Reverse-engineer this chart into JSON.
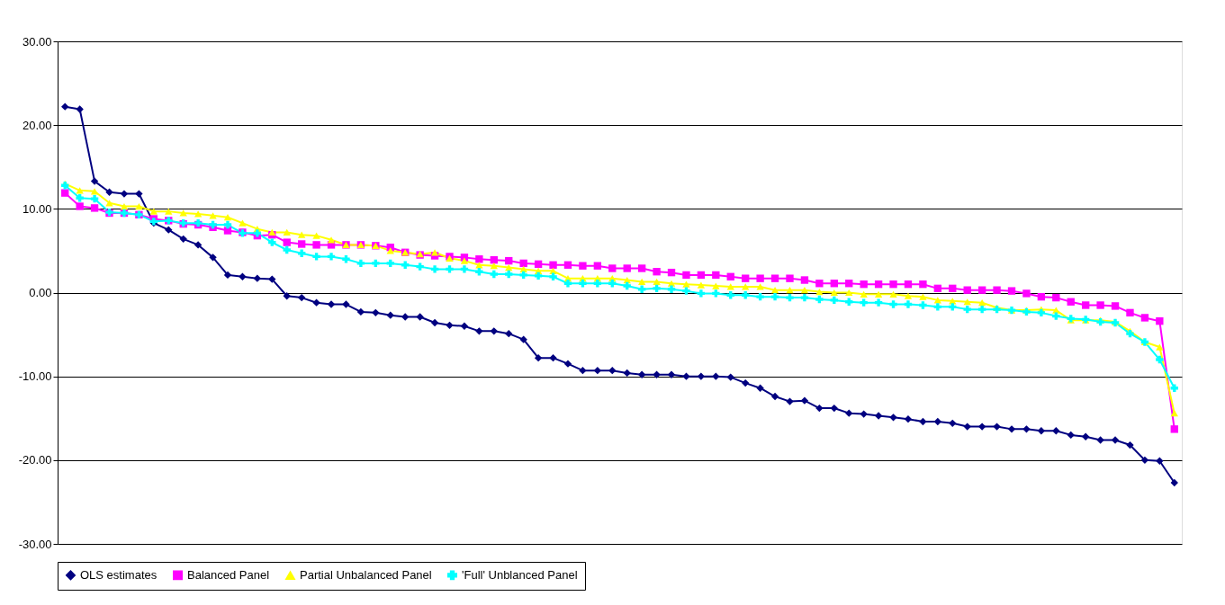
{
  "chart_data": {
    "type": "line",
    "categories": [
      null,
      null,
      null,
      null,
      null,
      null,
      null,
      null,
      null,
      null,
      null,
      null,
      null,
      null,
      null,
      null,
      null,
      null,
      null,
      null,
      null,
      null,
      null,
      null,
      null,
      null,
      null,
      null,
      null,
      null,
      null,
      null,
      null,
      null,
      null,
      null,
      null,
      null,
      null,
      null,
      null,
      null,
      null,
      null,
      null,
      null,
      null,
      null,
      null,
      null,
      null,
      null,
      null,
      null,
      null,
      null,
      null,
      null,
      null,
      null,
      null,
      null,
      null,
      null,
      null,
      null,
      null,
      null,
      null,
      null,
      null,
      null,
      null,
      null,
      null,
      null
    ],
    "series": [
      {
        "name": "OLS estimates",
        "color": "#000080",
        "marker": "diamond",
        "values": [
          22.2,
          21.9,
          13.3,
          12.0,
          11.8,
          11.8,
          8.3,
          7.5,
          6.4,
          5.7,
          4.2,
          2.1,
          1.9,
          1.7,
          1.6,
          -0.4,
          -0.6,
          -1.2,
          -1.4,
          -1.4,
          -2.3,
          -2.4,
          -2.7,
          -2.9,
          -2.9,
          -3.6,
          -3.9,
          -4.0,
          -4.6,
          -4.6,
          -4.9,
          -5.6,
          -7.8,
          -7.8,
          -8.5,
          -9.3,
          -9.3,
          -9.3,
          -9.6,
          -9.8,
          -9.8,
          -9.8,
          -10.0,
          -10.0,
          -10.0,
          -10.1,
          -10.8,
          -11.4,
          -12.4,
          -13.0,
          -12.9,
          -13.8,
          -13.8,
          -14.4,
          -14.5,
          -14.7,
          -14.9,
          -15.1,
          -15.4,
          -15.4,
          -15.6,
          -16.0,
          -16.0,
          -16.0,
          -16.3,
          -16.3,
          -16.5,
          -16.5,
          -17.0,
          -17.2,
          -17.6,
          -17.6,
          -18.2,
          -20.0,
          -20.1,
          -22.7
        ]
      },
      {
        "name": "Balanced Panel",
        "color": "#ff00ff",
        "marker": "square",
        "values": [
          11.9,
          10.3,
          10.1,
          9.5,
          9.5,
          9.3,
          8.8,
          8.6,
          8.2,
          8.1,
          7.8,
          7.4,
          7.2,
          6.8,
          6.9,
          6.0,
          5.8,
          5.7,
          5.7,
          5.7,
          5.7,
          5.6,
          5.4,
          4.8,
          4.5,
          4.4,
          4.3,
          4.2,
          4.0,
          3.9,
          3.8,
          3.5,
          3.4,
          3.3,
          3.3,
          3.2,
          3.2,
          2.9,
          2.9,
          2.9,
          2.5,
          2.4,
          2.1,
          2.1,
          2.1,
          1.9,
          1.7,
          1.7,
          1.7,
          1.7,
          1.5,
          1.1,
          1.1,
          1.1,
          1.0,
          1.0,
          1.0,
          1.0,
          1.0,
          0.5,
          0.5,
          0.3,
          0.3,
          0.3,
          0.2,
          -0.1,
          -0.5,
          -0.6,
          -1.1,
          -1.5,
          -1.5,
          -1.6,
          -2.4,
          -3.0,
          -3.4,
          -16.3
        ]
      },
      {
        "name": "Partial Unbalanced Panel",
        "color": "#ffff00",
        "marker": "triangle",
        "values": [
          13.0,
          12.2,
          12.1,
          10.7,
          10.3,
          10.3,
          9.7,
          9.7,
          9.5,
          9.4,
          9.2,
          9.0,
          8.3,
          7.6,
          7.2,
          7.2,
          6.9,
          6.8,
          6.3,
          5.7,
          5.7,
          5.6,
          5.0,
          4.8,
          4.6,
          4.8,
          4.1,
          3.8,
          3.3,
          3.2,
          3.0,
          2.8,
          2.6,
          2.6,
          1.7,
          1.7,
          1.7,
          1.7,
          1.5,
          1.3,
          1.3,
          1.1,
          1.0,
          0.9,
          0.8,
          0.7,
          0.7,
          0.7,
          0.3,
          0.3,
          0.3,
          0.1,
          0.0,
          0.0,
          -0.2,
          -0.2,
          -0.2,
          -0.4,
          -0.5,
          -0.9,
          -1.0,
          -1.1,
          -1.2,
          -1.8,
          -2.1,
          -2.1,
          -2.0,
          -2.1,
          -3.3,
          -3.3,
          -3.3,
          -3.5,
          -4.6,
          -5.9,
          -6.5,
          -14.4
        ]
      },
      {
        "name": "'Full' Unblanced Panel",
        "color": "#00ffff",
        "marker": "cross",
        "values": [
          12.8,
          11.3,
          11.2,
          9.6,
          9.5,
          9.3,
          8.5,
          8.6,
          8.3,
          8.3,
          8.1,
          8.1,
          7.1,
          7.1,
          6.0,
          5.1,
          4.7,
          4.3,
          4.3,
          4.0,
          3.5,
          3.5,
          3.5,
          3.3,
          3.1,
          2.8,
          2.8,
          2.8,
          2.5,
          2.2,
          2.2,
          2.1,
          2.0,
          1.9,
          1.1,
          1.1,
          1.1,
          1.1,
          0.8,
          0.4,
          0.5,
          0.4,
          0.2,
          -0.1,
          -0.1,
          -0.3,
          -0.3,
          -0.5,
          -0.5,
          -0.6,
          -0.6,
          -0.8,
          -0.9,
          -1.1,
          -1.2,
          -1.2,
          -1.4,
          -1.4,
          -1.5,
          -1.7,
          -1.7,
          -2.0,
          -2.0,
          -2.0,
          -2.1,
          -2.3,
          -2.4,
          -2.8,
          -3.1,
          -3.2,
          -3.5,
          -3.6,
          -4.9,
          -5.9,
          -8.0,
          -11.4
        ]
      }
    ],
    "ylim": [
      -30,
      30
    ],
    "yticks": [
      {
        "value": -30,
        "label": "-30.00"
      },
      {
        "value": -20,
        "label": "-20.00"
      },
      {
        "value": -10,
        "label": "-10.00"
      },
      {
        "value": 0,
        "label": "0.00"
      },
      {
        "value": 10,
        "label": "10.00"
      },
      {
        "value": 20,
        "label": "20.00"
      },
      {
        "value": 30,
        "label": "30.00"
      }
    ],
    "grid": "y",
    "legend": "bottom",
    "line_style": "solid"
  }
}
